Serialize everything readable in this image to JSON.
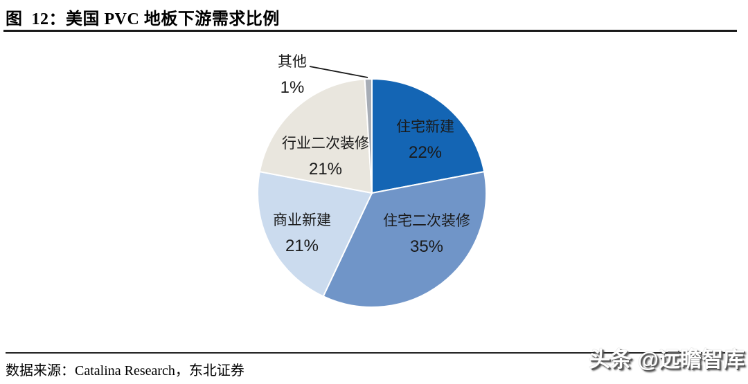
{
  "header": {
    "title": "图  12：美国 PVC 地板下游需求比例"
  },
  "chart_data": {
    "type": "pie",
    "title": "图 12：美国 PVC 地板下游需求比例",
    "start_angle_deg": 0,
    "direction": "clockwise",
    "legend": "none",
    "labels_inside": true,
    "segments": [
      {
        "label": "住宅新建",
        "value": 22,
        "percent_label": "22%",
        "color": "#1465b4"
      },
      {
        "label": "住宅二次装修",
        "value": 35,
        "percent_label": "35%",
        "color": "#7095c8"
      },
      {
        "label": "商业新建",
        "value": 21,
        "percent_label": "21%",
        "color": "#cbdbee"
      },
      {
        "label": "行业二次装修",
        "value": 21,
        "percent_label": "21%",
        "color": "#e9e6de"
      },
      {
        "label": "其他",
        "value": 1,
        "percent_label": "1%",
        "color": "#a7adb6"
      }
    ],
    "slice_border_color": "#ffffff"
  },
  "footer": {
    "source": "数据来源：Catalina Research，东北证券"
  },
  "watermark": {
    "text": "头条 @远瞻智库"
  }
}
